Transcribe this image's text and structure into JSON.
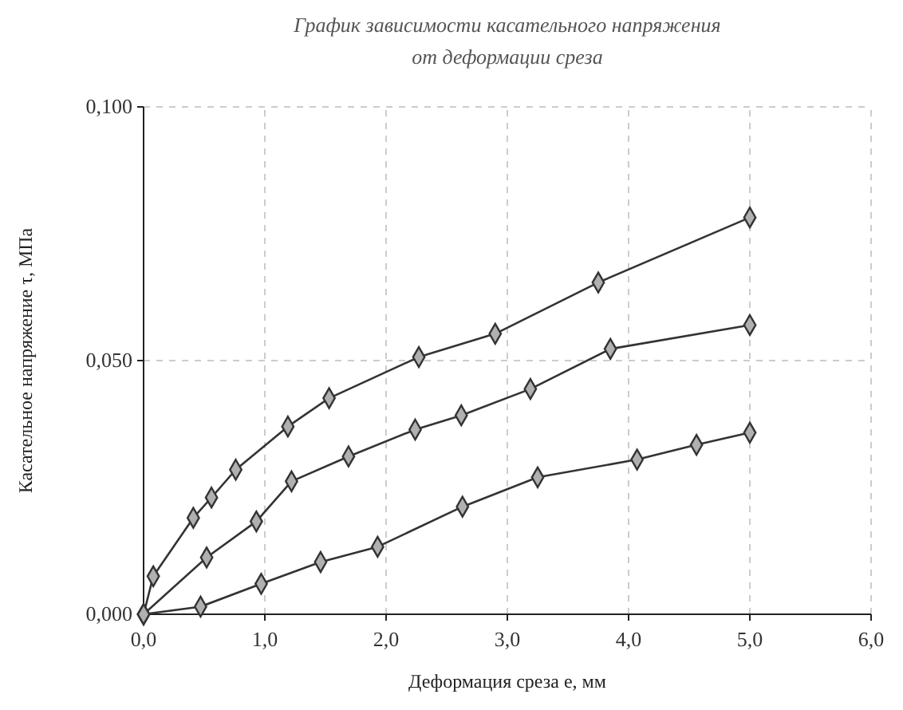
{
  "chart_data": {
    "type": "line",
    "title": "График зависимости касательного напряжения от деформации среза",
    "xlabel": "Деформация среза е, мм",
    "ylabel": "Касательное напряжение τ, МПа",
    "xlim": [
      0,
      6
    ],
    "ylim": [
      0,
      0.1
    ],
    "xticks": [
      {
        "value": 0,
        "label": "0,0"
      },
      {
        "value": 1,
        "label": "1,0"
      },
      {
        "value": 2,
        "label": "2,0"
      },
      {
        "value": 3,
        "label": "3,0"
      },
      {
        "value": 4,
        "label": "4,0"
      },
      {
        "value": 5,
        "label": "5,0"
      },
      {
        "value": 6,
        "label": "6,0"
      }
    ],
    "yticks": [
      {
        "value": 0,
        "label": "0,000"
      },
      {
        "value": 0.05,
        "label": "0,050"
      },
      {
        "value": 0.1,
        "label": "0,100"
      }
    ],
    "grid": true,
    "marker": "diamond",
    "line_style": "solid",
    "series": [
      {
        "color": "#333333",
        "x": [
          0,
          0.08,
          0.41,
          0.56,
          0.76,
          1.19,
          1.53,
          2.27,
          2.9,
          3.75,
          5.0
        ],
        "values": [
          0,
          0.0075,
          0.019,
          0.023,
          0.0285,
          0.037,
          0.0426,
          0.0507,
          0.0553,
          0.0654,
          0.0782
        ]
      },
      {
        "color": "#333333",
        "x": [
          0,
          0.52,
          0.93,
          1.22,
          1.69,
          2.24,
          2.62,
          3.19,
          3.85,
          5.0
        ],
        "values": [
          0,
          0.0112,
          0.0183,
          0.0262,
          0.0311,
          0.0364,
          0.0392,
          0.0444,
          0.0523,
          0.057
        ]
      },
      {
        "color": "#333333",
        "x": [
          0,
          0.47,
          0.97,
          1.46,
          1.93,
          2.63,
          3.25,
          4.07,
          4.56,
          5.0
        ],
        "values": [
          0,
          0.0015,
          0.006,
          0.0103,
          0.0133,
          0.0212,
          0.027,
          0.0305,
          0.0334,
          0.0358
        ]
      }
    ]
  }
}
